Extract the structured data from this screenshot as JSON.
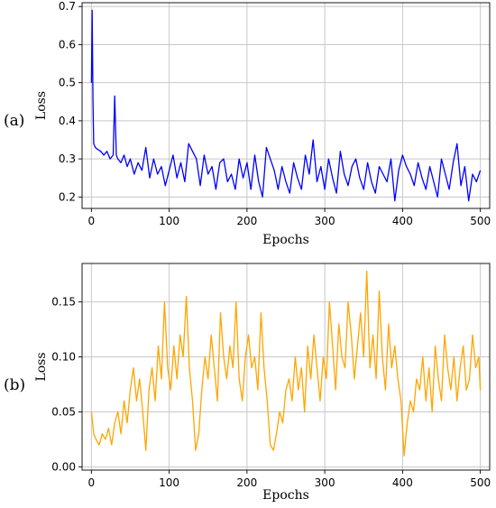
{
  "chart_data": [
    {
      "type": "line",
      "panel_label": "(a)",
      "xlabel": "Epochs",
      "ylabel": "Loss",
      "xlim": [
        -12,
        512
      ],
      "ylim": [
        0.17,
        0.71
      ],
      "xticks": [
        0,
        100,
        200,
        300,
        400,
        500
      ],
      "yticks": [
        0.2,
        0.3,
        0.4,
        0.5,
        0.6,
        0.7
      ],
      "ytick_labels": [
        "0.2",
        "0.3",
        "0.4",
        "0.5",
        "0.6",
        "0.7"
      ],
      "grid": true,
      "series": [
        {
          "color": "#0000ff",
          "x": [
            0,
            1,
            2,
            3,
            5,
            8,
            12,
            16,
            20,
            24,
            28,
            30,
            32,
            34,
            38,
            42,
            46,
            50,
            55,
            60,
            65,
            70,
            75,
            80,
            85,
            90,
            95,
            100,
            105,
            110,
            115,
            120,
            125,
            130,
            135,
            140,
            145,
            150,
            155,
            160,
            165,
            170,
            175,
            180,
            185,
            190,
            195,
            200,
            205,
            210,
            215,
            220,
            225,
            230,
            235,
            240,
            245,
            250,
            255,
            260,
            265,
            270,
            275,
            280,
            285,
            290,
            295,
            300,
            305,
            310,
            315,
            320,
            325,
            330,
            335,
            340,
            345,
            350,
            355,
            360,
            365,
            370,
            375,
            380,
            385,
            390,
            395,
            400,
            405,
            410,
            415,
            420,
            425,
            430,
            435,
            440,
            445,
            450,
            455,
            460,
            465,
            470,
            475,
            480,
            485,
            490,
            495,
            500
          ],
          "y": [
            0.5,
            0.69,
            0.45,
            0.34,
            0.33,
            0.325,
            0.32,
            0.31,
            0.32,
            0.3,
            0.31,
            0.465,
            0.31,
            0.3,
            0.29,
            0.31,
            0.28,
            0.3,
            0.26,
            0.29,
            0.27,
            0.33,
            0.25,
            0.3,
            0.26,
            0.28,
            0.23,
            0.27,
            0.31,
            0.25,
            0.29,
            0.24,
            0.34,
            0.32,
            0.3,
            0.23,
            0.31,
            0.26,
            0.28,
            0.22,
            0.29,
            0.3,
            0.24,
            0.26,
            0.22,
            0.3,
            0.25,
            0.29,
            0.22,
            0.31,
            0.24,
            0.2,
            0.33,
            0.3,
            0.27,
            0.22,
            0.28,
            0.24,
            0.21,
            0.29,
            0.25,
            0.22,
            0.31,
            0.26,
            0.35,
            0.24,
            0.28,
            0.22,
            0.3,
            0.25,
            0.21,
            0.32,
            0.26,
            0.23,
            0.28,
            0.3,
            0.25,
            0.22,
            0.29,
            0.24,
            0.21,
            0.28,
            0.26,
            0.24,
            0.3,
            0.19,
            0.27,
            0.31,
            0.28,
            0.26,
            0.23,
            0.29,
            0.25,
            0.22,
            0.28,
            0.24,
            0.2,
            0.3,
            0.26,
            0.22,
            0.29,
            0.34,
            0.23,
            0.28,
            0.19,
            0.26,
            0.24,
            0.27
          ]
        }
      ]
    },
    {
      "type": "line",
      "panel_label": "(b)",
      "xlabel": "Epochs",
      "ylabel": "Loss",
      "xlim": [
        -12,
        512
      ],
      "ylim": [
        -0.003,
        0.185
      ],
      "xticks": [
        0,
        100,
        200,
        300,
        400,
        500
      ],
      "yticks": [
        0.0,
        0.05,
        0.1,
        0.15
      ],
      "ytick_labels": [
        "0.00",
        "0.05",
        "0.10",
        "0.15"
      ],
      "grid": true,
      "series": [
        {
          "color": "#ffa500",
          "x": [
            0,
            3,
            6,
            10,
            14,
            18,
            22,
            26,
            30,
            34,
            38,
            42,
            46,
            50,
            54,
            58,
            62,
            66,
            70,
            74,
            78,
            82,
            86,
            90,
            94,
            98,
            102,
            106,
            110,
            114,
            118,
            122,
            126,
            130,
            134,
            138,
            142,
            146,
            150,
            154,
            158,
            162,
            166,
            170,
            174,
            178,
            182,
            186,
            190,
            194,
            198,
            202,
            206,
            210,
            214,
            218,
            222,
            226,
            230,
            234,
            238,
            242,
            246,
            250,
            254,
            258,
            262,
            266,
            270,
            274,
            278,
            282,
            286,
            290,
            294,
            298,
            302,
            306,
            310,
            314,
            318,
            322,
            326,
            330,
            334,
            338,
            342,
            346,
            350,
            354,
            358,
            362,
            366,
            370,
            374,
            378,
            382,
            386,
            390,
            394,
            398,
            402,
            406,
            410,
            414,
            418,
            422,
            426,
            430,
            434,
            438,
            442,
            446,
            450,
            454,
            458,
            462,
            466,
            470,
            474,
            478,
            482,
            486,
            490,
            494,
            498,
            500
          ],
          "y": [
            0.05,
            0.03,
            0.025,
            0.02,
            0.03,
            0.025,
            0.035,
            0.02,
            0.04,
            0.05,
            0.03,
            0.06,
            0.04,
            0.07,
            0.09,
            0.06,
            0.08,
            0.05,
            0.015,
            0.07,
            0.09,
            0.06,
            0.11,
            0.08,
            0.15,
            0.09,
            0.07,
            0.11,
            0.08,
            0.12,
            0.1,
            0.155,
            0.09,
            0.06,
            0.015,
            0.03,
            0.07,
            0.1,
            0.08,
            0.12,
            0.09,
            0.06,
            0.14,
            0.1,
            0.08,
            0.11,
            0.09,
            0.15,
            0.08,
            0.06,
            0.1,
            0.12,
            0.09,
            0.1,
            0.07,
            0.14,
            0.09,
            0.06,
            0.02,
            0.015,
            0.03,
            0.05,
            0.04,
            0.07,
            0.08,
            0.06,
            0.1,
            0.07,
            0.09,
            0.05,
            0.11,
            0.08,
            0.12,
            0.09,
            0.06,
            0.1,
            0.08,
            0.15,
            0.11,
            0.07,
            0.13,
            0.1,
            0.09,
            0.15,
            0.12,
            0.08,
            0.11,
            0.14,
            0.1,
            0.178,
            0.09,
            0.12,
            0.08,
            0.16,
            0.1,
            0.07,
            0.13,
            0.09,
            0.11,
            0.08,
            0.06,
            0.01,
            0.04,
            0.06,
            0.05,
            0.08,
            0.07,
            0.1,
            0.06,
            0.09,
            0.05,
            0.11,
            0.08,
            0.06,
            0.12,
            0.09,
            0.07,
            0.1,
            0.06,
            0.09,
            0.11,
            0.07,
            0.08,
            0.12,
            0.09,
            0.1,
            0.07
          ]
        }
      ]
    }
  ]
}
